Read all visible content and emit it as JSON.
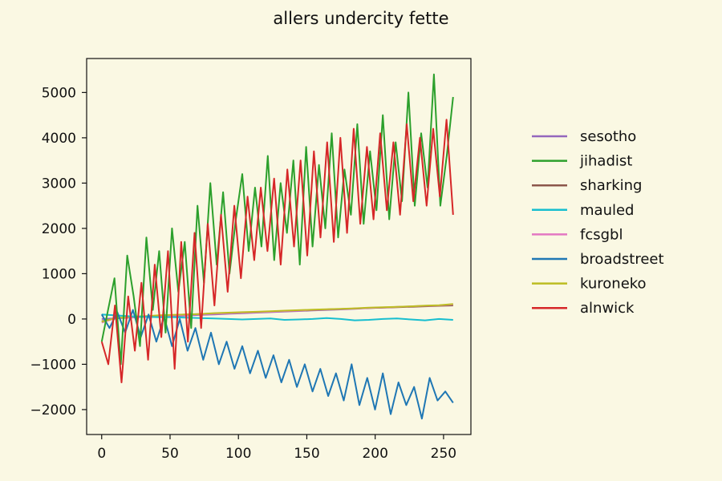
{
  "chart_data": {
    "type": "line",
    "title": "allers undercity fette",
    "xlabel": "",
    "ylabel": "",
    "xlim": [
      -11,
      270
    ],
    "ylim": [
      -2550,
      5750
    ],
    "xticks": [
      0,
      50,
      100,
      150,
      200,
      250
    ],
    "yticks": [
      -2000,
      -1000,
      0,
      1000,
      2000,
      3000,
      4000,
      5000
    ],
    "grid": false,
    "legend_position": "right",
    "n_points": 258,
    "series": [
      {
        "name": "sesotho",
        "color": "#9467bd",
        "values": [
          0,
          15,
          30,
          45,
          55,
          65,
          75,
          90,
          100,
          115,
          125,
          140,
          150,
          165,
          175,
          190,
          200,
          210,
          225,
          240,
          250,
          265,
          275,
          290,
          300,
          310
        ]
      },
      {
        "name": "jihadist",
        "color": "#2ca02c",
        "values": [
          -500,
          200,
          900,
          -1000,
          1400,
          500,
          -600,
          1800,
          200,
          1500,
          -300,
          2000,
          600,
          1700,
          -200,
          2500,
          800,
          3000,
          1200,
          2800,
          1000,
          2200,
          3200,
          1500,
          2900,
          1600,
          3600,
          1300,
          3000,
          1900,
          3500,
          1200,
          3800,
          1600,
          3400,
          2000,
          4100,
          1800,
          3300,
          2300,
          4300,
          2100,
          3700,
          2400,
          4500,
          2200,
          3900,
          2600,
          5000,
          2500,
          4100,
          2900,
          5400,
          2500,
          3600,
          4900
        ]
      },
      {
        "name": "sharking",
        "color": "#8c564b",
        "values": [
          -50,
          10,
          40,
          60,
          70,
          80,
          100,
          110,
          120,
          130,
          140,
          150,
          165,
          175,
          185,
          195,
          210,
          220,
          230,
          240,
          250,
          260,
          270,
          280,
          290,
          300
        ]
      },
      {
        "name": "mauled",
        "color": "#17becf",
        "values": [
          100,
          80,
          60,
          50,
          40,
          40,
          30,
          20,
          10,
          0,
          -10,
          0,
          10,
          -20,
          -10,
          0,
          20,
          0,
          -30,
          -20,
          0,
          10,
          -10,
          -30,
          0,
          -20
        ]
      },
      {
        "name": "fcsgbl",
        "color": "#e377c2",
        "values": [
          -80,
          20,
          40,
          50,
          60,
          80,
          90,
          105,
          115,
          130,
          140,
          150,
          160,
          175,
          185,
          200,
          210,
          220,
          230,
          245,
          255,
          265,
          280,
          290,
          300,
          320
        ]
      },
      {
        "name": "broadstreet",
        "color": "#1f77b4",
        "values": [
          100,
          -200,
          150,
          -300,
          200,
          -400,
          100,
          -500,
          50,
          -600,
          0,
          -700,
          -200,
          -900,
          -300,
          -1000,
          -500,
          -1100,
          -600,
          -1200,
          -700,
          -1300,
          -800,
          -1400,
          -900,
          -1500,
          -1000,
          -1600,
          -1100,
          -1700,
          -1200,
          -1800,
          -1000,
          -1900,
          -1300,
          -2000,
          -1200,
          -2100,
          -1400,
          -1900,
          -1500,
          -2200,
          -1300,
          -1800,
          -1600,
          -1850
        ]
      },
      {
        "name": "kuroneko",
        "color": "#bcbd22",
        "values": [
          -60,
          20,
          50,
          60,
          80,
          90,
          100,
          110,
          130,
          140,
          150,
          160,
          170,
          185,
          195,
          205,
          215,
          225,
          235,
          250,
          260,
          270,
          280,
          295,
          305,
          330
        ]
      },
      {
        "name": "alnwick",
        "color": "#d62728",
        "values": [
          -500,
          -1000,
          300,
          -1400,
          500,
          -700,
          800,
          -900,
          1200,
          -400,
          1500,
          -1100,
          1700,
          -500,
          1900,
          -200,
          2100,
          300,
          2300,
          600,
          2500,
          900,
          2700,
          1300,
          2900,
          1500,
          3100,
          1200,
          3300,
          1600,
          3500,
          1400,
          3700,
          1800,
          3900,
          1700,
          4000,
          1900,
          4200,
          2100,
          3800,
          2200,
          4100,
          2400,
          3900,
          2300,
          4300,
          2600,
          4000,
          2500,
          4200,
          2700,
          4400,
          2300
        ]
      }
    ]
  }
}
